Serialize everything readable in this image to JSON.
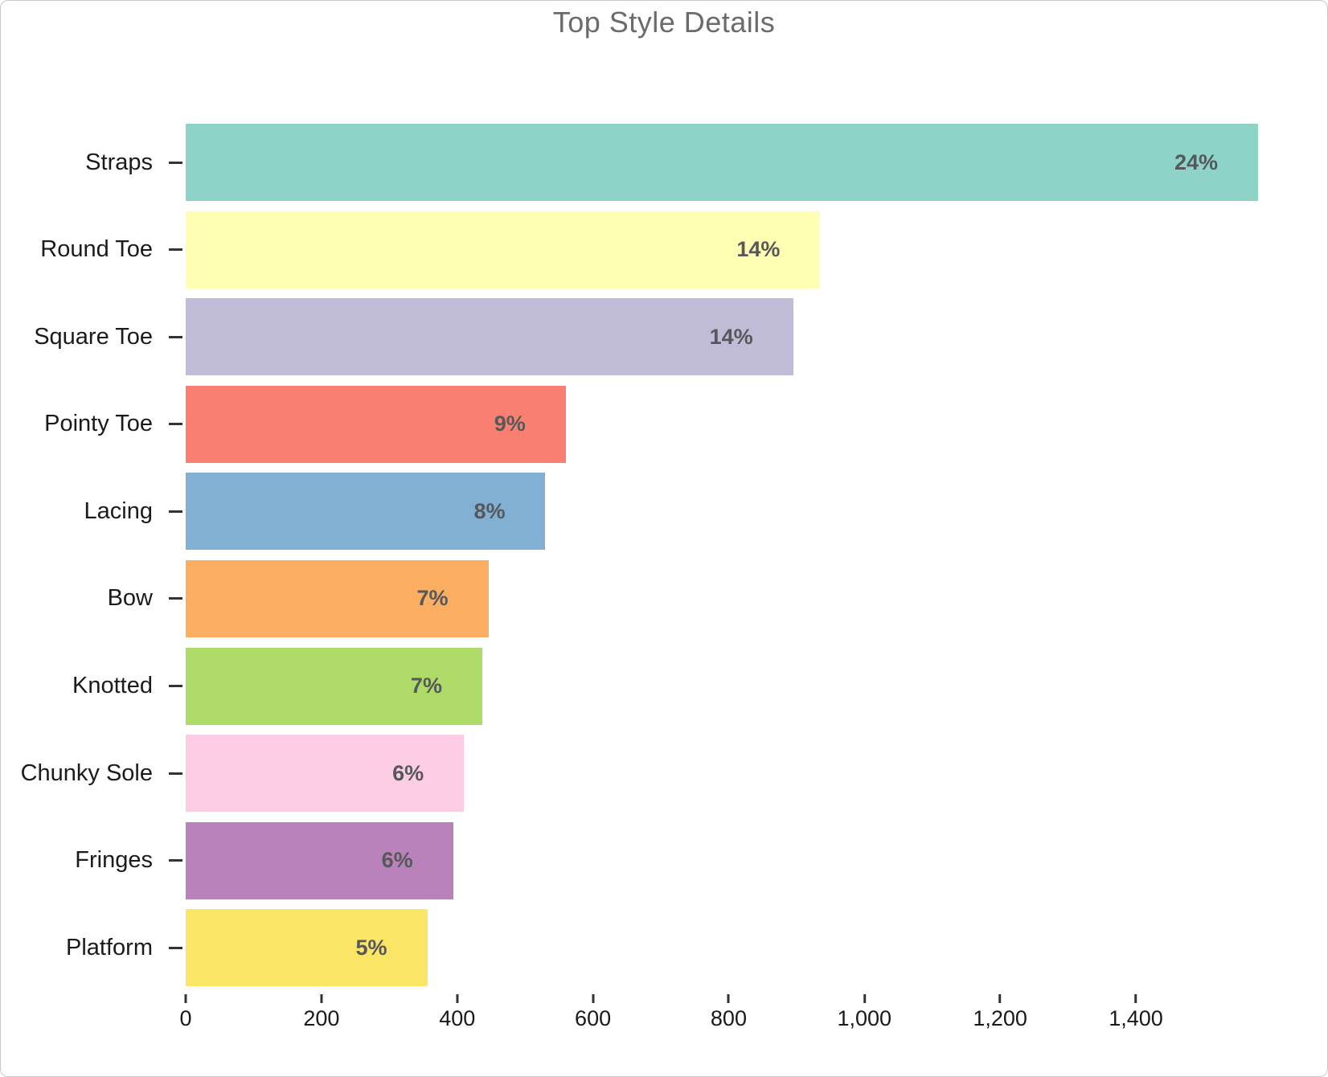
{
  "title": "Top Style Details",
  "chart_data": {
    "type": "bar",
    "orientation": "horizontal",
    "title": "Top Style Details",
    "categories": [
      "Straps",
      "Round Toe",
      "Square Toe",
      "Pointy Toe",
      "Lacing",
      "Bow",
      "Knotted",
      "Chunky Sole",
      "Fringes",
      "Platform"
    ],
    "values": [
      1580,
      935,
      895,
      560,
      530,
      446,
      437,
      410,
      394,
      356
    ],
    "bar_labels": [
      "24%",
      "14%",
      "14%",
      "9%",
      "8%",
      "7%",
      "7%",
      "6%",
      "6%",
      "5%"
    ],
    "colors": [
      "#8dd3c8",
      "#feffb3",
      "#c0bcd8",
      "#fa8072",
      "#81b0d2",
      "#fbad61",
      "#aeda68",
      "#fdcde6",
      "#ba82bb",
      "#fbe567"
    ],
    "xlabel": "",
    "ylabel": "",
    "xlim": [
      0,
      1670
    ],
    "xticks": [
      0,
      200,
      400,
      600,
      800,
      1000,
      1200,
      1400
    ],
    "xtick_labels": [
      "0",
      "200",
      "400",
      "600",
      "800",
      "1,000",
      "1,200",
      "1,400"
    ],
    "grid": false,
    "legend": false
  },
  "style": {
    "title_color": "#6b6b6b",
    "category_label_color": "#1b1b1b",
    "bar_label_color": "#56585a",
    "axis_tick_color": "#333333",
    "xtick_label_color": "#191919",
    "card_border_color": "#c9c9c9",
    "background_color": "#ffffff"
  }
}
